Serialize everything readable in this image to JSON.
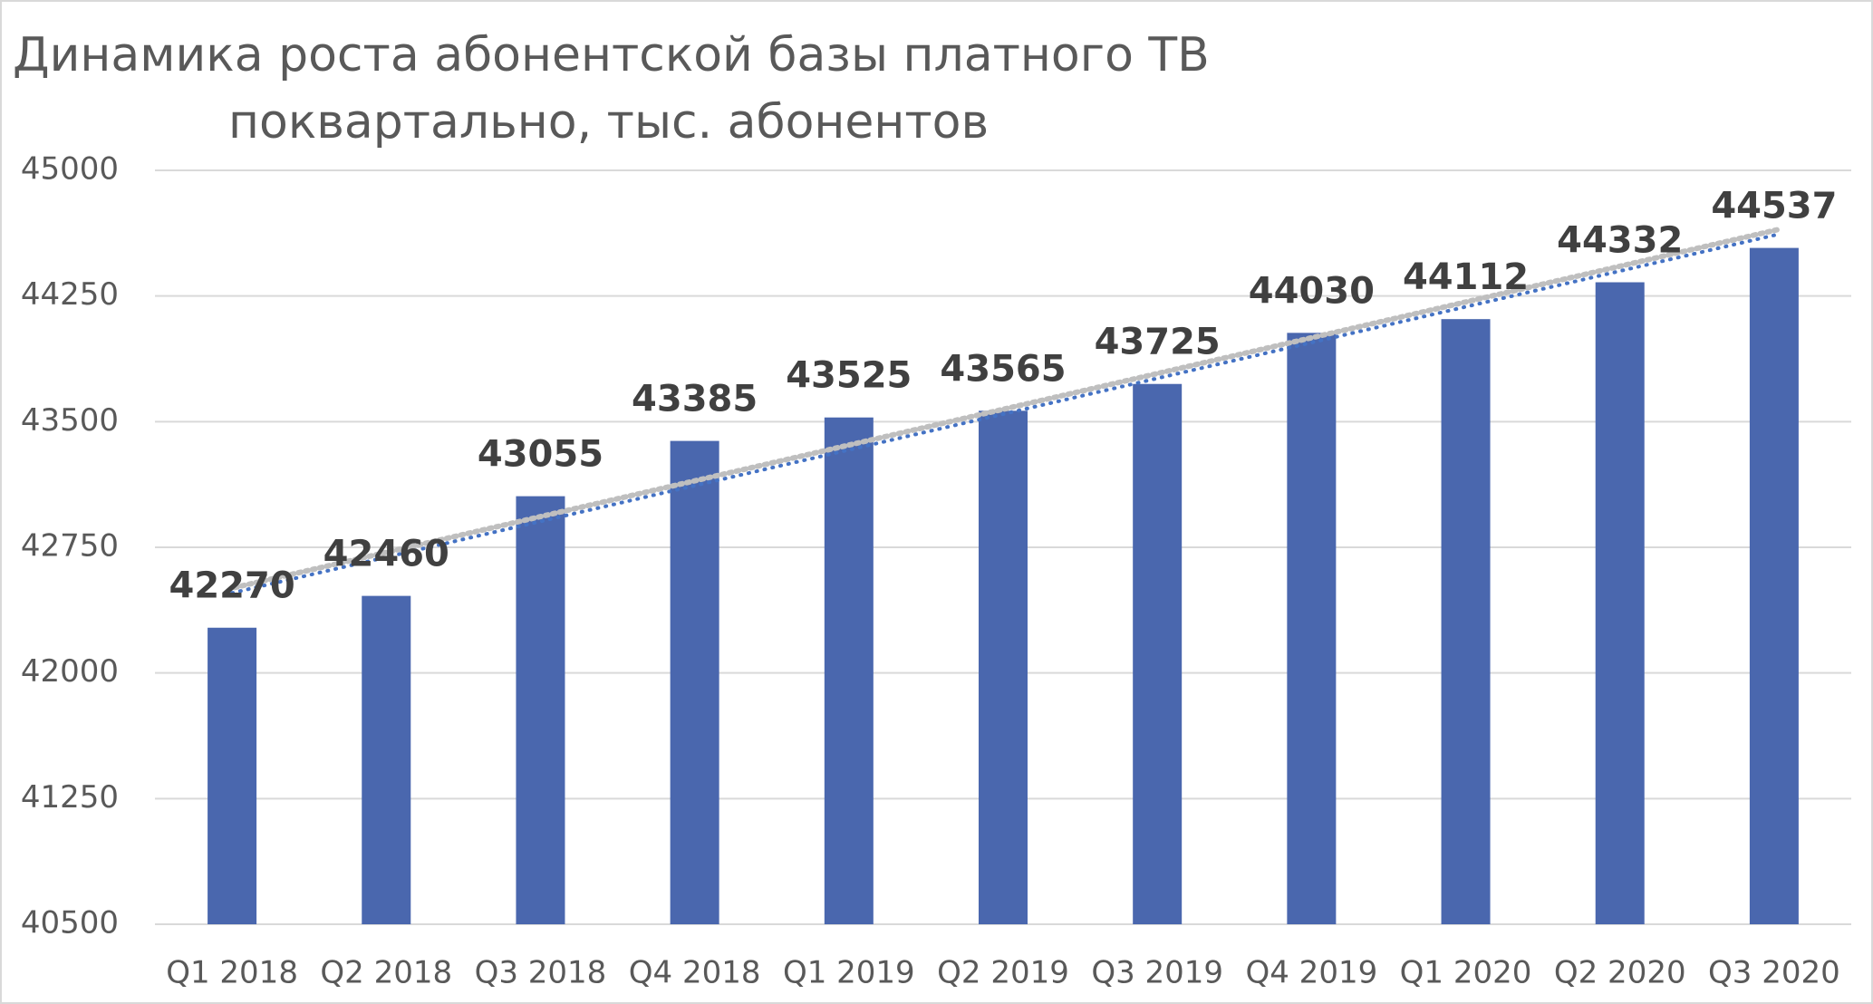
{
  "chart_data": {
    "type": "bar",
    "title": [
      "Динамика роста абонентской базы платного ТВ",
      "поквартально, тыс. абонентов"
    ],
    "categories": [
      "Q1 2018",
      "Q2 2018",
      "Q3 2018",
      "Q4 2018",
      "Q1 2019",
      "Q2 2019",
      "Q3 2019",
      "Q4 2019",
      "Q1 2020",
      "Q2 2020",
      "Q3 2020"
    ],
    "values": [
      42270,
      42460,
      43055,
      43385,
      43525,
      43565,
      43725,
      44030,
      44112,
      44332,
      44537
    ],
    "color": "#4a67ae",
    "ylim": [
      40500,
      45000
    ],
    "yticks": [
      40500,
      41250,
      42000,
      42750,
      43500,
      44250,
      45000
    ],
    "grid": true,
    "trendline": true,
    "trendline_color": "#4472c4"
  }
}
